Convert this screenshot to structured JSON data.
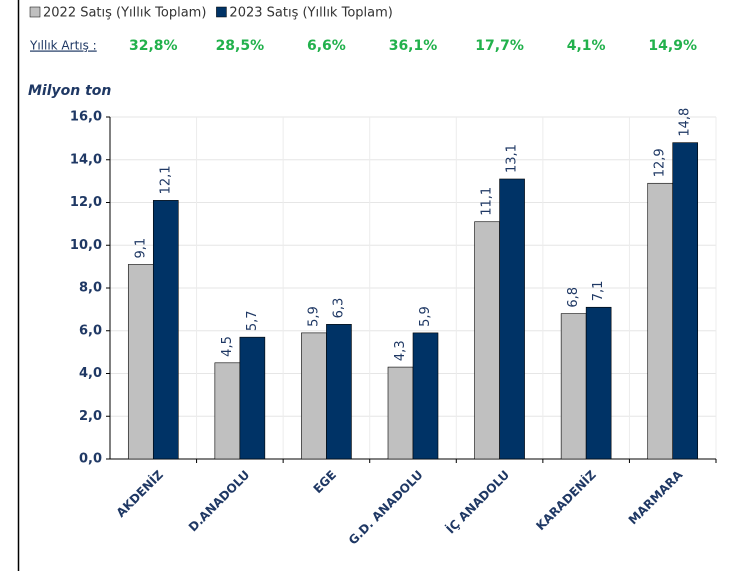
{
  "chart_data": {
    "type": "bar",
    "y_label": "Milyon ton",
    "growth_label": "Yıllık Artış :",
    "growth": [
      "32,8%",
      "28,5%",
      "6,6%",
      "36,1%",
      "17,7%",
      "4,1%",
      "14,9%"
    ],
    "categories": [
      "AKDENİZ",
      "D.ANADOLU",
      "EGE",
      "G.D. ANADOLU",
      "İÇ ANADOLU",
      "KARADENİZ",
      "MARMARA"
    ],
    "series": [
      {
        "name": "2022 Satış (Yıllık Toplam)",
        "color": "#c0c0c0",
        "values": [
          9.1,
          4.5,
          5.9,
          4.3,
          11.1,
          6.8,
          12.9
        ],
        "value_labels": [
          "9,1",
          "4,5",
          "5,9",
          "4,3",
          "11,1",
          "6,8",
          "12,9"
        ]
      },
      {
        "name": "2023 Satış (Yıllık Toplam)",
        "color": "#003366",
        "values": [
          12.1,
          5.7,
          6.3,
          5.9,
          13.1,
          7.1,
          14.8
        ],
        "value_labels": [
          "12,1",
          "5,7",
          "6,3",
          "5,9",
          "13,1",
          "7,1",
          "14,8"
        ]
      }
    ],
    "ylim": [
      0,
      16
    ],
    "yticks": [
      {
        "value": 0,
        "label": "0,0"
      },
      {
        "value": 2,
        "label": "2,0"
      },
      {
        "value": 4,
        "label": "4,0"
      },
      {
        "value": 6,
        "label": "6,0"
      },
      {
        "value": 8,
        "label": "8,0"
      },
      {
        "value": 10,
        "label": "10,0"
      },
      {
        "value": 12,
        "label": "12,0"
      },
      {
        "value": 14,
        "label": "14,0"
      },
      {
        "value": 16,
        "label": "16,0"
      }
    ],
    "grid": true
  }
}
